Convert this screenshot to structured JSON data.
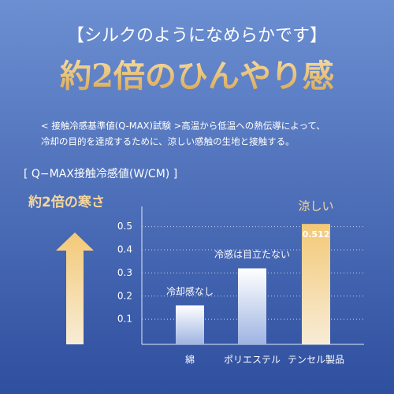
{
  "header": {
    "subtitle": "【シルクのようになめらかです】",
    "title": "約2倍のひんやり感",
    "description": [
      "< 接触冷感基準値(Q-MAX)試験 >高温から低温への熱伝導によって、",
      "冷却の目的を達成するために、涼しい感触の生地と接触する。"
    ]
  },
  "chart_data": {
    "type": "bar",
    "title": "[ Q−MAX接触冷感値(W/CM) ]",
    "side_label": "約2倍の寒さ",
    "categories": [
      "綿",
      "ポリエステル",
      "テンセル製品"
    ],
    "values": [
      0.16,
      0.32,
      0.512
    ],
    "value_labels": [
      null,
      null,
      "0.512"
    ],
    "annotations": [
      "冷却感なし",
      "冷感は目立たない",
      "涼しい"
    ],
    "ylim": [
      0,
      0.55
    ],
    "yticks": [
      0.1,
      0.2,
      0.3,
      0.4,
      0.5
    ],
    "grid": true
  }
}
